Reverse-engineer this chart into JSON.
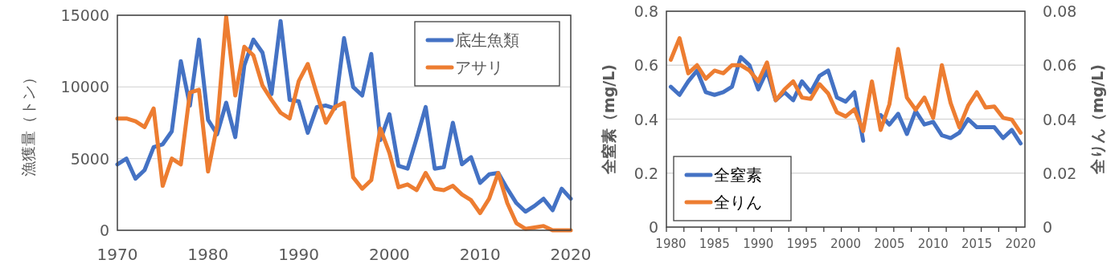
{
  "chart_data": [
    {
      "type": "line",
      "ylabel": "漁獲量（トン）",
      "x": [
        1970,
        1971,
        1972,
        1973,
        1974,
        1975,
        1976,
        1977,
        1978,
        1979,
        1980,
        1981,
        1982,
        1983,
        1984,
        1985,
        1986,
        1987,
        1988,
        1989,
        1990,
        1991,
        1992,
        1993,
        1994,
        1995,
        1996,
        1997,
        1998,
        1999,
        2000,
        2001,
        2002,
        2003,
        2004,
        2005,
        2006,
        2007,
        2008,
        2009,
        2010,
        2011,
        2012,
        2013,
        2014,
        2015,
        2016,
        2017,
        2018,
        2019,
        2020
      ],
      "series": [
        {
          "name": "底生魚類",
          "color": "#4472c4",
          "values": [
            4600,
            5000,
            3600,
            4200,
            5800,
            6000,
            6900,
            11800,
            8700,
            13300,
            7700,
            6700,
            8900,
            6500,
            11500,
            13300,
            12400,
            9500,
            14600,
            9100,
            9000,
            6800,
            8600,
            8700,
            8500,
            13400,
            10000,
            9400,
            12300,
            6300,
            8100,
            4500,
            4300,
            6400,
            8600,
            4300,
            4400,
            7500,
            4600,
            5100,
            3300,
            3900,
            4000,
            2900,
            1900,
            1300,
            1700,
            2200,
            1400,
            2900,
            2200
          ]
        },
        {
          "name": "アサリ",
          "color": "#ed7d31",
          "values": [
            7800,
            7800,
            7600,
            7200,
            8500,
            3100,
            5000,
            4600,
            9600,
            9800,
            4100,
            7300,
            14900,
            9400,
            12800,
            12200,
            10100,
            9100,
            8200,
            7800,
            10400,
            11600,
            9500,
            7500,
            8600,
            8900,
            3700,
            2900,
            3500,
            7100,
            5400,
            3000,
            3200,
            2800,
            4000,
            2900,
            2800,
            3100,
            2500,
            2100,
            1200,
            2200,
            4000,
            1900,
            500,
            100,
            200,
            300,
            0,
            0,
            0
          ]
        }
      ],
      "xlim": [
        1970,
        2020
      ],
      "xticks": [
        1970,
        1980,
        1990,
        2000,
        2010,
        2020
      ],
      "ylim": [
        0,
        15000
      ],
      "yticks": [
        0,
        5000,
        10000,
        15000
      ],
      "grid": "y",
      "legend": "top right"
    },
    {
      "type": "line",
      "ylabel": "全窒素（mg/L)",
      "y2label": "全りん（mg/L)",
      "x": [
        1980,
        1981,
        1982,
        1983,
        1984,
        1985,
        1986,
        1987,
        1988,
        1989,
        1990,
        1991,
        1992,
        1993,
        1994,
        1995,
        1996,
        1997,
        1998,
        1999,
        2000,
        2001,
        2002,
        2003,
        2004,
        2005,
        2006,
        2007,
        2008,
        2009,
        2010,
        2011,
        2012,
        2013,
        2014,
        2015,
        2016,
        2017,
        2018,
        2019,
        2020
      ],
      "series": [
        {
          "name": "全窒素",
          "color": "#4472c4",
          "values": [
            0.52,
            0.49,
            0.54,
            0.58,
            0.5,
            0.49,
            0.5,
            0.52,
            0.63,
            0.6,
            0.51,
            0.58,
            0.47,
            0.5,
            0.47,
            0.54,
            0.5,
            0.56,
            0.58,
            0.48,
            0.465,
            0.5,
            0.32,
            null,
            0.415,
            0.38,
            0.42,
            0.345,
            0.43,
            0.38,
            0.39,
            0.34,
            0.33,
            0.35,
            0.4,
            0.37,
            0.37,
            0.37,
            0.33,
            0.36,
            0.31
          ]
        },
        {
          "name": "全りん",
          "color": "#ed7d31",
          "axis": "y2",
          "values": [
            0.062,
            0.07,
            0.057,
            0.06,
            0.055,
            0.058,
            0.057,
            0.06,
            0.06,
            0.058,
            0.054,
            0.061,
            0.047,
            0.051,
            0.054,
            0.048,
            0.0475,
            0.053,
            0.0495,
            0.0425,
            0.041,
            0.0437,
            0.0356,
            0.054,
            0.036,
            0.0455,
            0.066,
            0.048,
            0.0435,
            0.048,
            0.0405,
            0.06,
            0.046,
            0.037,
            0.045,
            0.05,
            0.0443,
            0.0447,
            0.0405,
            0.0398,
            0.035
          ]
        }
      ],
      "xlim": [
        1979.5,
        2020.5
      ],
      "xticks": [
        {
          "value": 1979.5,
          "label": null
        },
        {
          "value": 1980,
          "label": "1980"
        },
        {
          "value": 1981.5,
          "label": null
        },
        {
          "value": 1983.5,
          "label": null
        },
        {
          "value": 1985,
          "label": "1985"
        },
        {
          "value": 1985.5,
          "label": null
        },
        {
          "value": 1987.5,
          "label": null
        },
        {
          "value": 1989.5,
          "label": null
        },
        {
          "value": 1990,
          "label": "1990"
        },
        {
          "value": 1991.5,
          "label": null
        },
        {
          "value": 1993.5,
          "label": null
        },
        {
          "value": 1995,
          "label": "1995"
        },
        {
          "value": 1995.5,
          "label": null
        },
        {
          "value": 1997.5,
          "label": null
        },
        {
          "value": 1999.5,
          "label": null
        },
        {
          "value": 2000,
          "label": "2000"
        },
        {
          "value": 2001.5,
          "label": null
        },
        {
          "value": 2003.5,
          "label": null
        },
        {
          "value": 2005,
          "label": "2005"
        },
        {
          "value": 2005.5,
          "label": null
        },
        {
          "value": 2007.5,
          "label": null
        },
        {
          "value": 2009.5,
          "label": null
        },
        {
          "value": 2010,
          "label": "2010"
        },
        {
          "value": 2011.5,
          "label": null
        },
        {
          "value": 2013.5,
          "label": null
        },
        {
          "value": 2015,
          "label": "2015"
        },
        {
          "value": 2015.5,
          "label": null
        },
        {
          "value": 2017.5,
          "label": null
        },
        {
          "value": 2019.5,
          "label": null
        },
        {
          "value": 2020,
          "label": "2020"
        }
      ],
      "ylim": [
        0,
        0.8
      ],
      "yticks": [
        0,
        0.2,
        0.4,
        0.6,
        0.8
      ],
      "y2lim": [
        0,
        0.08
      ],
      "y2ticks": [
        0,
        0.02,
        0.04,
        0.06,
        0.08
      ],
      "grid": "y",
      "legend": "bottom left"
    }
  ]
}
